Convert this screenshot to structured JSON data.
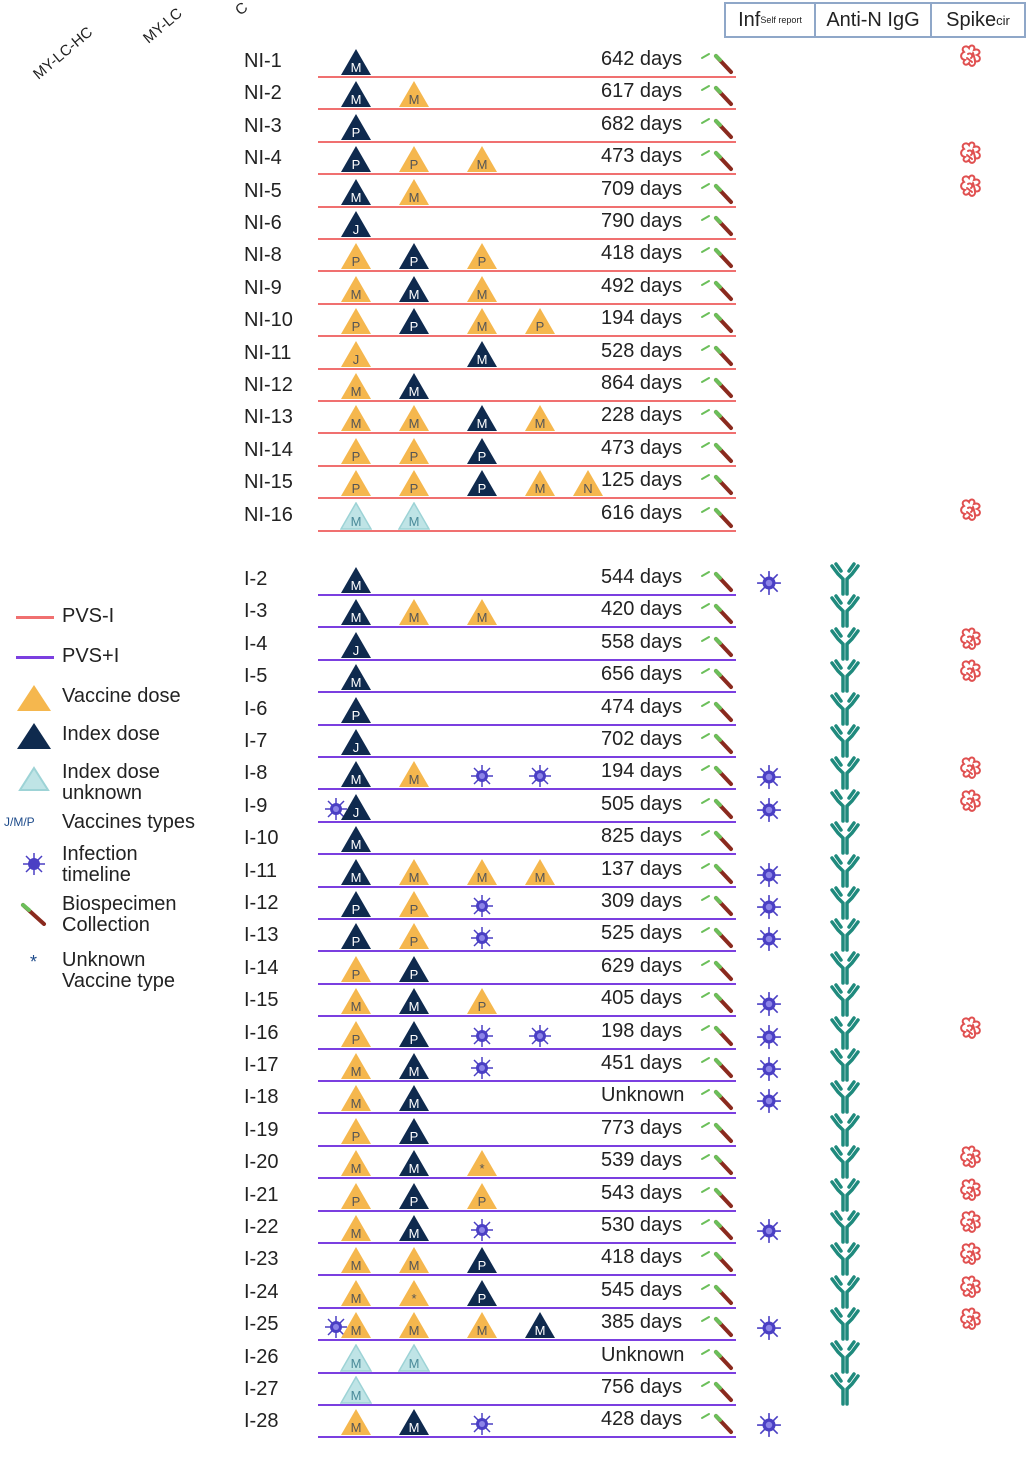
{
  "corner_labels": [
    "MY-LC-HC",
    "MY-LC",
    "C"
  ],
  "headers": {
    "inf": "Inf",
    "inf_sub": "Self report",
    "antin": "Anti-N IgG",
    "spike": "Spike",
    "spike_sub": "cir"
  },
  "legend": {
    "pvs_i": "PVS-I",
    "pvs_plus_i": "PVS+I",
    "vaccine_dose": "Vaccine dose",
    "index_dose": "Index dose",
    "index_unknown": "Index dose unknown",
    "vaccine_types_abbr": "J/M/P",
    "vaccine_types": "Vaccines types",
    "infection": "Infection timeline",
    "biospecimen": "Biospecimen Collection",
    "unknown_type_symbol": "*",
    "unknown_type": "Unknown Vaccine type"
  },
  "colors": {
    "pvs_i_line": "#f07070",
    "pvs_plus_i_line": "#7b3fe0",
    "vaccine": "#f5b74e",
    "index": "#0f2a4e",
    "index_unknown": "#bfe4e6",
    "virus": "#4a3fc4",
    "antibody": "#1f8a7d",
    "spike": "#e05050"
  },
  "rows": [
    {
      "id": "NI-1",
      "group": "NI",
      "days": "642 days",
      "doses": [
        {
          "pos": 0,
          "kind": "index",
          "letter": "M"
        }
      ],
      "inf": false,
      "antin": false,
      "spike": true
    },
    {
      "id": "NI-2",
      "group": "NI",
      "days": "617 days",
      "doses": [
        {
          "pos": 0,
          "kind": "index",
          "letter": "M"
        },
        {
          "pos": 1,
          "kind": "vaccine",
          "letter": "M"
        }
      ],
      "inf": false,
      "antin": false,
      "spike": false
    },
    {
      "id": "NI-3",
      "group": "NI",
      "days": "682 days",
      "doses": [
        {
          "pos": 0,
          "kind": "index",
          "letter": "P"
        }
      ],
      "inf": false,
      "antin": false,
      "spike": false
    },
    {
      "id": "NI-4",
      "group": "NI",
      "days": "473 days",
      "doses": [
        {
          "pos": 0,
          "kind": "index",
          "letter": "P"
        },
        {
          "pos": 1,
          "kind": "vaccine",
          "letter": "P"
        },
        {
          "pos": 2,
          "kind": "vaccine",
          "letter": "M"
        }
      ],
      "inf": false,
      "antin": false,
      "spike": true
    },
    {
      "id": "NI-5",
      "group": "NI",
      "days": "709 days",
      "doses": [
        {
          "pos": 0,
          "kind": "index",
          "letter": "M"
        },
        {
          "pos": 1,
          "kind": "vaccine",
          "letter": "M"
        }
      ],
      "inf": false,
      "antin": false,
      "spike": true
    },
    {
      "id": "NI-6",
      "group": "NI",
      "days": "790 days",
      "doses": [
        {
          "pos": 0,
          "kind": "index",
          "letter": "J"
        }
      ],
      "inf": false,
      "antin": false,
      "spike": false
    },
    {
      "id": "NI-8",
      "group": "NI",
      "days": "418 days",
      "doses": [
        {
          "pos": 0,
          "kind": "vaccine",
          "letter": "P"
        },
        {
          "pos": 1,
          "kind": "index",
          "letter": "P"
        },
        {
          "pos": 2,
          "kind": "vaccine",
          "letter": "P"
        }
      ],
      "inf": false,
      "antin": false,
      "spike": false
    },
    {
      "id": "NI-9",
      "group": "NI",
      "days": "492 days",
      "doses": [
        {
          "pos": 0,
          "kind": "vaccine",
          "letter": "M"
        },
        {
          "pos": 1,
          "kind": "index",
          "letter": "M"
        },
        {
          "pos": 2,
          "kind": "vaccine",
          "letter": "M"
        }
      ],
      "inf": false,
      "antin": false,
      "spike": false
    },
    {
      "id": "NI-10",
      "group": "NI",
      "days": "194 days",
      "doses": [
        {
          "pos": 0,
          "kind": "vaccine",
          "letter": "P"
        },
        {
          "pos": 1,
          "kind": "index",
          "letter": "P"
        },
        {
          "pos": 2,
          "kind": "vaccine",
          "letter": "M"
        },
        {
          "pos": 3,
          "kind": "vaccine",
          "letter": "P"
        }
      ],
      "inf": false,
      "antin": false,
      "spike": false
    },
    {
      "id": "NI-11",
      "group": "NI",
      "days": "528 days",
      "doses": [
        {
          "pos": 0,
          "kind": "vaccine",
          "letter": "J"
        },
        {
          "pos": 2,
          "kind": "index",
          "letter": "M"
        }
      ],
      "inf": false,
      "antin": false,
      "spike": false
    },
    {
      "id": "NI-12",
      "group": "NI",
      "days": "864 days",
      "doses": [
        {
          "pos": 0,
          "kind": "vaccine",
          "letter": "M"
        },
        {
          "pos": 1,
          "kind": "index",
          "letter": "M"
        }
      ],
      "inf": false,
      "antin": false,
      "spike": false
    },
    {
      "id": "NI-13",
      "group": "NI",
      "days": "228 days",
      "doses": [
        {
          "pos": 0,
          "kind": "vaccine",
          "letter": "M"
        },
        {
          "pos": 1,
          "kind": "vaccine",
          "letter": "M"
        },
        {
          "pos": 2,
          "kind": "index",
          "letter": "M"
        },
        {
          "pos": 3,
          "kind": "vaccine",
          "letter": "M"
        }
      ],
      "inf": false,
      "antin": false,
      "spike": false
    },
    {
      "id": "NI-14",
      "group": "NI",
      "days": "473 days",
      "doses": [
        {
          "pos": 0,
          "kind": "vaccine",
          "letter": "P"
        },
        {
          "pos": 1,
          "kind": "vaccine",
          "letter": "P"
        },
        {
          "pos": 2,
          "kind": "index",
          "letter": "P"
        }
      ],
      "inf": false,
      "antin": false,
      "spike": false
    },
    {
      "id": "NI-15",
      "group": "NI",
      "days": "125 days",
      "doses": [
        {
          "pos": 0,
          "kind": "vaccine",
          "letter": "P"
        },
        {
          "pos": 1,
          "kind": "vaccine",
          "letter": "P"
        },
        {
          "pos": 2,
          "kind": "index",
          "letter": "P"
        },
        {
          "pos": 3,
          "kind": "vaccine",
          "letter": "M"
        },
        {
          "pos": 4,
          "kind": "vaccine",
          "letter": "N"
        }
      ],
      "inf": false,
      "antin": false,
      "spike": false
    },
    {
      "id": "NI-16",
      "group": "NI",
      "days": "616 days",
      "doses": [
        {
          "pos": 0,
          "kind": "unknown",
          "letter": "M"
        },
        {
          "pos": 1,
          "kind": "unknown",
          "letter": "M"
        }
      ],
      "inf": false,
      "antin": false,
      "spike": true
    },
    {
      "id": "I-2",
      "group": "I",
      "days": "544 days",
      "doses": [
        {
          "pos": 0,
          "kind": "index",
          "letter": "M"
        }
      ],
      "inf": true,
      "antin": true,
      "spike": false
    },
    {
      "id": "I-3",
      "group": "I",
      "days": "420 days",
      "doses": [
        {
          "pos": 0,
          "kind": "index",
          "letter": "M"
        },
        {
          "pos": 1,
          "kind": "vaccine",
          "letter": "M"
        },
        {
          "pos": 2,
          "kind": "vaccine",
          "letter": "M"
        }
      ],
      "inf": false,
      "antin": true,
      "spike": false
    },
    {
      "id": "I-4",
      "group": "I",
      "days": "558 days",
      "doses": [
        {
          "pos": 0,
          "kind": "index",
          "letter": "J"
        }
      ],
      "inf": false,
      "antin": true,
      "spike": true
    },
    {
      "id": "I-5",
      "group": "I",
      "days": "656 days",
      "doses": [
        {
          "pos": 0,
          "kind": "index",
          "letter": "M"
        }
      ],
      "inf": false,
      "antin": true,
      "spike": true
    },
    {
      "id": "I-6",
      "group": "I",
      "days": "474 days",
      "doses": [
        {
          "pos": 0,
          "kind": "index",
          "letter": "P"
        }
      ],
      "inf": false,
      "antin": true,
      "spike": false
    },
    {
      "id": "I-7",
      "group": "I",
      "days": "702 days",
      "doses": [
        {
          "pos": 0,
          "kind": "index",
          "letter": "J"
        }
      ],
      "inf": false,
      "antin": true,
      "spike": false
    },
    {
      "id": "I-8",
      "group": "I",
      "days": "194 days",
      "doses": [
        {
          "pos": 0,
          "kind": "index",
          "letter": "M"
        },
        {
          "pos": 1,
          "kind": "vaccine",
          "letter": "M"
        },
        {
          "pos": 2,
          "kind": "virus"
        },
        {
          "pos": 3,
          "kind": "virus"
        }
      ],
      "inf": true,
      "antin": true,
      "spike": true
    },
    {
      "id": "I-9",
      "group": "I",
      "days": "505 days",
      "doses": [
        {
          "pos": -1,
          "kind": "virus"
        },
        {
          "pos": 0,
          "kind": "index",
          "letter": "J"
        }
      ],
      "inf": true,
      "antin": true,
      "spike": true
    },
    {
      "id": "I-10",
      "group": "I",
      "days": "825 days",
      "doses": [
        {
          "pos": 0,
          "kind": "index",
          "letter": "M"
        }
      ],
      "inf": false,
      "antin": true,
      "spike": false
    },
    {
      "id": "I-11",
      "group": "I",
      "days": "137 days",
      "doses": [
        {
          "pos": 0,
          "kind": "index",
          "letter": "M"
        },
        {
          "pos": 1,
          "kind": "vaccine",
          "letter": "M"
        },
        {
          "pos": 2,
          "kind": "vaccine",
          "letter": "M"
        },
        {
          "pos": 3,
          "kind": "vaccine",
          "letter": "M"
        }
      ],
      "inf": true,
      "antin": true,
      "spike": false
    },
    {
      "id": "I-12",
      "group": "I",
      "days": "309 days",
      "doses": [
        {
          "pos": 0,
          "kind": "index",
          "letter": "P"
        },
        {
          "pos": 1,
          "kind": "vaccine",
          "letter": "P"
        },
        {
          "pos": 2,
          "kind": "virus"
        }
      ],
      "inf": true,
      "antin": true,
      "spike": false
    },
    {
      "id": "I-13",
      "group": "I",
      "days": "525 days",
      "doses": [
        {
          "pos": 0,
          "kind": "index",
          "letter": "P"
        },
        {
          "pos": 1,
          "kind": "vaccine",
          "letter": "P"
        },
        {
          "pos": 2,
          "kind": "virus"
        }
      ],
      "inf": true,
      "antin": true,
      "spike": false
    },
    {
      "id": "I-14",
      "group": "I",
      "days": "629 days",
      "doses": [
        {
          "pos": 0,
          "kind": "vaccine",
          "letter": "P"
        },
        {
          "pos": 1,
          "kind": "index",
          "letter": "P"
        }
      ],
      "inf": false,
      "antin": true,
      "spike": false
    },
    {
      "id": "I-15",
      "group": "I",
      "days": "405 days",
      "doses": [
        {
          "pos": 0,
          "kind": "vaccine",
          "letter": "M"
        },
        {
          "pos": 1,
          "kind": "index",
          "letter": "M"
        },
        {
          "pos": 2,
          "kind": "vaccine",
          "letter": "P"
        }
      ],
      "inf": true,
      "antin": true,
      "spike": false
    },
    {
      "id": "I-16",
      "group": "I",
      "days": "198 days",
      "doses": [
        {
          "pos": 0,
          "kind": "vaccine",
          "letter": "P"
        },
        {
          "pos": 1,
          "kind": "index",
          "letter": "P"
        },
        {
          "pos": 2,
          "kind": "virus"
        },
        {
          "pos": 3,
          "kind": "virus"
        }
      ],
      "inf": true,
      "antin": true,
      "spike": true
    },
    {
      "id": "I-17",
      "group": "I",
      "days": "451 days",
      "doses": [
        {
          "pos": 0,
          "kind": "vaccine",
          "letter": "M"
        },
        {
          "pos": 1,
          "kind": "index",
          "letter": "M"
        },
        {
          "pos": 2,
          "kind": "virus"
        }
      ],
      "inf": true,
      "antin": true,
      "spike": false
    },
    {
      "id": "I-18",
      "group": "I",
      "days": "Unknown",
      "doses": [
        {
          "pos": 0,
          "kind": "vaccine",
          "letter": "M"
        },
        {
          "pos": 1,
          "kind": "index",
          "letter": "M"
        }
      ],
      "inf": true,
      "antin": true,
      "spike": false
    },
    {
      "id": "I-19",
      "group": "I",
      "days": "773 days",
      "doses": [
        {
          "pos": 0,
          "kind": "vaccine",
          "letter": "P"
        },
        {
          "pos": 1,
          "kind": "index",
          "letter": "P"
        }
      ],
      "inf": false,
      "antin": true,
      "spike": false
    },
    {
      "id": "I-20",
      "group": "I",
      "days": "539 days",
      "doses": [
        {
          "pos": 0,
          "kind": "vaccine",
          "letter": "M"
        },
        {
          "pos": 1,
          "kind": "index",
          "letter": "M"
        },
        {
          "pos": 2,
          "kind": "vaccine",
          "letter": "*"
        }
      ],
      "inf": false,
      "antin": true,
      "spike": true
    },
    {
      "id": "I-21",
      "group": "I",
      "days": "543 days",
      "doses": [
        {
          "pos": 0,
          "kind": "vaccine",
          "letter": "P"
        },
        {
          "pos": 1,
          "kind": "index",
          "letter": "P"
        },
        {
          "pos": 2,
          "kind": "vaccine",
          "letter": "P"
        }
      ],
      "inf": false,
      "antin": true,
      "spike": true
    },
    {
      "id": "I-22",
      "group": "I",
      "days": "530 days",
      "doses": [
        {
          "pos": 0,
          "kind": "vaccine",
          "letter": "M"
        },
        {
          "pos": 1,
          "kind": "index",
          "letter": "M"
        },
        {
          "pos": 2,
          "kind": "virus"
        }
      ],
      "inf": true,
      "antin": true,
      "spike": true
    },
    {
      "id": "I-23",
      "group": "I",
      "days": "418 days",
      "doses": [
        {
          "pos": 0,
          "kind": "vaccine",
          "letter": "M"
        },
        {
          "pos": 1,
          "kind": "vaccine",
          "letter": "M"
        },
        {
          "pos": 2,
          "kind": "index",
          "letter": "P"
        }
      ],
      "inf": false,
      "antin": true,
      "spike": true
    },
    {
      "id": "I-24",
      "group": "I",
      "days": "545 days",
      "doses": [
        {
          "pos": 0,
          "kind": "vaccine",
          "letter": "M"
        },
        {
          "pos": 1,
          "kind": "vaccine",
          "letter": "*"
        },
        {
          "pos": 2,
          "kind": "index",
          "letter": "P"
        }
      ],
      "inf": false,
      "antin": true,
      "spike": true
    },
    {
      "id": "I-25",
      "group": "I",
      "days": "385 days",
      "doses": [
        {
          "pos": -1,
          "kind": "virus"
        },
        {
          "pos": 0,
          "kind": "vaccine",
          "letter": "M"
        },
        {
          "pos": 1,
          "kind": "vaccine",
          "letter": "M"
        },
        {
          "pos": 2,
          "kind": "vaccine",
          "letter": "M"
        },
        {
          "pos": 3,
          "kind": "index",
          "letter": "M"
        }
      ],
      "inf": true,
      "antin": true,
      "spike": true
    },
    {
      "id": "I-26",
      "group": "I",
      "days": "Unknown",
      "doses": [
        {
          "pos": 0,
          "kind": "unknown",
          "letter": "M"
        },
        {
          "pos": 1,
          "kind": "unknown",
          "letter": "M"
        }
      ],
      "inf": false,
      "antin": true,
      "spike": false
    },
    {
      "id": "I-27",
      "group": "I",
      "days": "756 days",
      "doses": [
        {
          "pos": 0,
          "kind": "unknown",
          "letter": "M"
        }
      ],
      "inf": false,
      "antin": true,
      "spike": false
    },
    {
      "id": "I-28",
      "group": "I",
      "days": "428 days",
      "doses": [
        {
          "pos": 0,
          "kind": "vaccine",
          "letter": "M"
        },
        {
          "pos": 1,
          "kind": "index",
          "letter": "M"
        },
        {
          "pos": 2,
          "kind": "virus"
        }
      ],
      "inf": true,
      "antin": false,
      "spike": false
    }
  ]
}
